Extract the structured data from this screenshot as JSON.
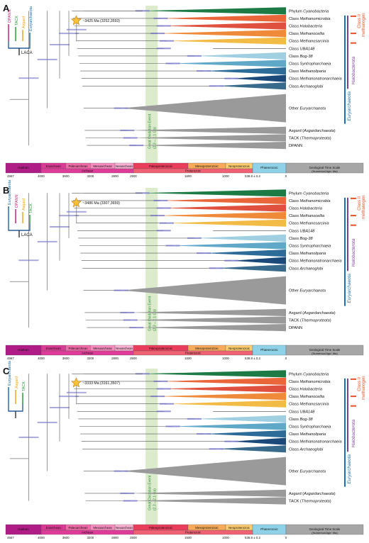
{
  "panels": [
    {
      "letter": "A",
      "star_label": "~3425 Ma (3252,3593)",
      "inset": {
        "labels": [
          "DPANN",
          "TACK",
          "Asgard",
          "Euryarchaeota"
        ],
        "root": "LACA",
        "colors": [
          "#c8207a",
          "#2a9c3c",
          "#f0a61c",
          "#1a6fb0"
        ]
      },
      "taxa": [
        {
          "label": "Phylum Cyanobacteria",
          "italic_part": "Cyanobacteria",
          "color": "#1c7a45",
          "wedge": true
        },
        {
          "label": "Class Methanomicrobia",
          "italic_part": "Methanomicrobia",
          "color": "#e8663a",
          "wedge": true
        },
        {
          "label": "Class Halobacteria",
          "italic_part": "Halobacteria",
          "color": "#e0503e",
          "wedge": true
        },
        {
          "label": "Class Methanocellia",
          "italic_part": "Methanocellia",
          "color": "#ee8a3a",
          "wedge": true
        },
        {
          "label": "Class Methanosarcinia",
          "italic_part": "Methanosarcinia",
          "color": "#f2bb45",
          "wedge": true
        },
        {
          "label": "Class UBA148",
          "italic_part": "UBA148",
          "color": "#444444",
          "wedge": false
        },
        {
          "label": "Class Bog-38",
          "italic_part": "Bog-38",
          "color": "#9fcfe0",
          "wedge": true
        },
        {
          "label": "Class Syntropharchaeia",
          "italic_part": "Syntropharchaeia",
          "color": "#5fa8c8",
          "wedge": true
        },
        {
          "label": "Class Methanoliparia",
          "italic_part": "Methanoliparia",
          "color": "#2d6c98",
          "wedge": true
        },
        {
          "label": "Class Methanonatronarchaeia",
          "italic_part": "Methanonatronarchaeia",
          "color": "#1b4a7a",
          "wedge": true
        },
        {
          "label": "Class Archaeoglobi",
          "italic_part": "Archaeoglobi",
          "color": "#386a8c",
          "wedge": true
        },
        {
          "label": "Other Euryarchaeota",
          "italic_part": "Euryarchaeota",
          "color": "#9a9a9a",
          "wedge": true,
          "big": true
        },
        {
          "label": "Asgard (Asgardarchaeota)",
          "italic_part": "Asgardarchaeota",
          "color": "#9a9a9a",
          "wedge": true
        },
        {
          "label": "TACK (Thermoproteota)",
          "italic_part": "Thermoproteota",
          "color": "#9a9a9a",
          "wedge": true
        },
        {
          "label": "DPANN",
          "italic_part": "",
          "color": "#9a9a9a",
          "wedge": true
        }
      ]
    },
    {
      "letter": "B",
      "star_label": "~3486 Ma (3307,3659)",
      "inset": {
        "labels": [
          "Euryarchaeota",
          "DPANN",
          "Asgard",
          "TACK"
        ],
        "root": "LACA",
        "colors": [
          "#1a6fb0",
          "#c8207a",
          "#f0a61c",
          "#2a9c3c"
        ]
      },
      "taxa": [
        {
          "label": "Phylum Cyanobacteria",
          "italic_part": "Cyanobacteria",
          "color": "#1c7a45",
          "wedge": true
        },
        {
          "label": "Class Methanomicrobia",
          "italic_part": "Methanomicrobia",
          "color": "#e8663a",
          "wedge": true
        },
        {
          "label": "Class Halobacteria",
          "italic_part": "Halobacteria",
          "color": "#e0503e",
          "wedge": true
        },
        {
          "label": "Class Methanocellia",
          "italic_part": "Methanocellia",
          "color": "#ee8a3a",
          "wedge": true
        },
        {
          "label": "Class Methanosarcinia",
          "italic_part": "Methanosarcinia",
          "color": "#f2bb45",
          "wedge": true
        },
        {
          "label": "Class UBA148",
          "italic_part": "UBA148",
          "color": "#444444",
          "wedge": false
        },
        {
          "label": "Class Bog-38",
          "italic_part": "Bog-38",
          "color": "#9fcfe0",
          "wedge": true
        },
        {
          "label": "Class Syntropharchaeia",
          "italic_part": "Syntropharchaeia",
          "color": "#5fa8c8",
          "wedge": true
        },
        {
          "label": "Class Methanoliparia",
          "italic_part": "Methanoliparia",
          "color": "#2d6c98",
          "wedge": true
        },
        {
          "label": "Class Methanonatronarchaeia",
          "italic_part": "Methanonatronarchaeia",
          "color": "#1b4a7a",
          "wedge": true
        },
        {
          "label": "Class Archaeoglobi",
          "italic_part": "Archaeoglobi",
          "color": "#386a8c",
          "wedge": true
        },
        {
          "label": "Other Euryarchaeota",
          "italic_part": "Euryarchaeota",
          "color": "#9a9a9a",
          "wedge": true,
          "big": true
        },
        {
          "label": "Asgard (Asgardarchaeota)",
          "italic_part": "Asgardarchaeota",
          "color": "#9a9a9a",
          "wedge": true
        },
        {
          "label": "TACK (Thermoproteota)",
          "italic_part": "Thermoproteota",
          "color": "#9a9a9a",
          "wedge": true
        },
        {
          "label": "DPANN",
          "italic_part": "",
          "color": "#9a9a9a",
          "wedge": true
        }
      ]
    },
    {
      "letter": "C",
      "star_label": "~3333 Ma (3161,3507)",
      "inset": {
        "labels": [
          "Euryarchaeota",
          "Asgard",
          "TACK"
        ],
        "root": "",
        "colors": [
          "#1a6fb0",
          "#f0a61c",
          "#2a9c3c"
        ]
      },
      "taxa": [
        {
          "label": "Phylum Cyanobacteria",
          "italic_part": "Cyanobacteria",
          "color": "#1c7a45",
          "wedge": true
        },
        {
          "label": "Class Methanomicrobia",
          "italic_part": "Methanomicrobia",
          "color": "#e8663a",
          "wedge": true
        },
        {
          "label": "Class Halobacteria",
          "italic_part": "Halobacteria",
          "color": "#e0503e",
          "wedge": true
        },
        {
          "label": "Class Methanocellia",
          "italic_part": "Methanocellia",
          "color": "#ee8a3a",
          "wedge": true
        },
        {
          "label": "Class Methanosarcinia",
          "italic_part": "Methanosarcinia",
          "color": "#f2bb45",
          "wedge": true
        },
        {
          "label": "Class UBA148",
          "italic_part": "UBA148",
          "color": "#444444",
          "wedge": false
        },
        {
          "label": "Class Bog-38",
          "italic_part": "Bog-38",
          "color": "#9fcfe0",
          "wedge": true
        },
        {
          "label": "Class Syntropharchaeia",
          "italic_part": "Syntropharchaeia",
          "color": "#5fa8c8",
          "wedge": true
        },
        {
          "label": "Class Methanoliparia",
          "italic_part": "Methanoliparia",
          "color": "#2d6c98",
          "wedge": true
        },
        {
          "label": "Class Methanonatronarchaeia",
          "italic_part": "Methanonatronarchaeia",
          "color": "#1b4a7a",
          "wedge": true
        },
        {
          "label": "Class Archaeoglobi",
          "italic_part": "Archaeoglobi",
          "color": "#386a8c",
          "wedge": true
        },
        {
          "label": "Other Euryarchaeota",
          "italic_part": "Euryarchaeota",
          "color": "#9a9a9a",
          "wedge": true,
          "big": true
        },
        {
          "label": "Asgard (Asgardarchaeota)",
          "italic_part": "Asgardarchaeota",
          "color": "#9a9a9a",
          "wedge": true
        },
        {
          "label": "TACK (Thermoproteota)",
          "italic_part": "Thermoproteota",
          "color": "#9a9a9a",
          "wedge": true
        }
      ]
    }
  ],
  "right_labels": {
    "class_ii": "Class II",
    "methanogen": "methanogen",
    "halobacterota": "Halobacterota",
    "euryarchaeota": "Euryarchaeota",
    "colors": {
      "class_ii": "#e8542a",
      "halobacterota": "#7b3fa0",
      "euryarchaeota": "#1a6fb0"
    }
  },
  "goe": {
    "label": "Great Oxidation Event",
    "range": "(2.3 – 2.1 Ga)"
  },
  "timescale": {
    "ticks": [
      "4567",
      "4000",
      "3600",
      "3200",
      "2800",
      "2500",
      "1600",
      "1000",
      "538.8 ± 0.2",
      "0"
    ],
    "eras": [
      {
        "name": "Hadean",
        "color": "#b01c85"
      },
      {
        "name": "Eoarchean",
        "color": "#da3a94"
      },
      {
        "name": "Paleoarchean",
        "color": "#f06aa8"
      },
      {
        "name": "Mesoarchean",
        "color": "#f58cbd"
      },
      {
        "name": "Neoarchean",
        "color": "#fab1d2"
      },
      {
        "name": "Paleoproterozoic",
        "color": "#ea3d5c"
      },
      {
        "name": "Mesoproterozoic",
        "color": "#f7aa5a"
      },
      {
        "name": "Neoproterozoic",
        "color": "#fdcc6e"
      },
      {
        "name": "Phanerozoic",
        "color": "#8fd2e8"
      },
      {
        "name": "Geological Time Scale",
        "sub": "(Numerical Age: Ma)",
        "color": "#a6a6a6"
      }
    ],
    "eons": [
      {
        "name": "Archean",
        "color": "#df3c99"
      },
      {
        "name": "Proterozoic",
        "color": "#f06273"
      }
    ]
  }
}
